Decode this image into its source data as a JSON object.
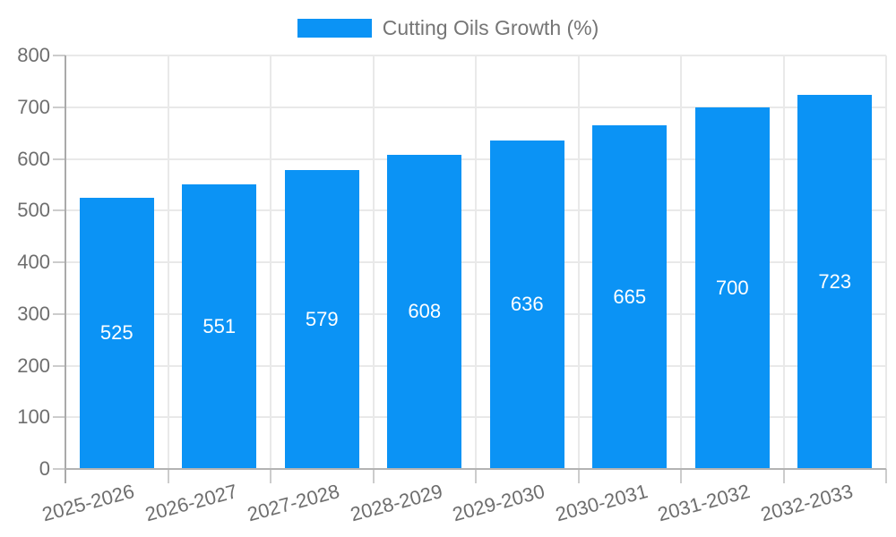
{
  "chart_data": {
    "type": "bar",
    "title": "",
    "legend": {
      "label": "Cutting Oils Growth (%)",
      "position": "top"
    },
    "categories": [
      "2025-2026",
      "2026-2027",
      "2027-2028",
      "2028-2029",
      "2029-2030",
      "2030-2031",
      "2031-2032",
      "2032-2033"
    ],
    "values": [
      525,
      551,
      579,
      608,
      636,
      665,
      700,
      723
    ],
    "value_labels_shown": true,
    "value_label_position": "inside-center",
    "xlabel": "",
    "ylabel": "",
    "ylim": [
      0,
      800
    ],
    "yticks": [
      0,
      100,
      200,
      300,
      400,
      500,
      600,
      700,
      800
    ],
    "grid": true,
    "colors": {
      "bar": "#0b93f5",
      "value_label": "#ffffff",
      "axis_text": "#6e6e6e",
      "legend_text": "#757575",
      "gridline": "#e9e9e9",
      "tick": "#cccccc",
      "axis_line": "#aaaaaa"
    }
  }
}
